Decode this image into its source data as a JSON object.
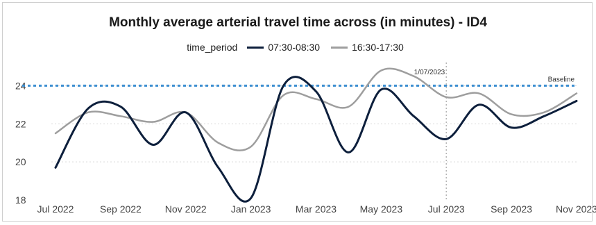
{
  "chart_data": {
    "type": "line",
    "title": "Monthly average arterial travel time across (in minutes) - ID4",
    "legend_title": "time_period",
    "legend_position": "top-center",
    "x": [
      "2022-07",
      "2022-08",
      "2022-09",
      "2022-10",
      "2022-11",
      "2022-12",
      "2023-01",
      "2023-02",
      "2023-03",
      "2023-04",
      "2023-05",
      "2023-06",
      "2023-07",
      "2023-08",
      "2023-09",
      "2023-10",
      "2023-11"
    ],
    "x_tick_labels": [
      "Jul 2022",
      "Sep 2022",
      "Nov 2022",
      "Jan 2023",
      "Mar 2023",
      "May 2023",
      "Jul 2023",
      "Sep 2023",
      "Nov 2023"
    ],
    "ylim": [
      18,
      25
    ],
    "y_ticks": [
      18,
      20,
      22,
      24
    ],
    "grid": "horizontal-dotted",
    "series": [
      {
        "name": "07:30-08:30",
        "color": "#0d1f3c",
        "values": [
          19.7,
          22.8,
          22.9,
          20.9,
          22.6,
          19.7,
          18.1,
          24.0,
          23.7,
          20.5,
          23.8,
          22.4,
          21.2,
          23.0,
          21.8,
          22.4,
          23.2
        ]
      },
      {
        "name": "16:30-17:30",
        "color": "#9e9e9e",
        "values": [
          21.5,
          22.6,
          22.4,
          22.1,
          22.6,
          21.0,
          20.8,
          23.5,
          23.3,
          22.9,
          24.8,
          24.5,
          23.4,
          23.6,
          22.5,
          22.6,
          23.6
        ]
      }
    ],
    "reference_lines": [
      {
        "type": "horizontal",
        "value": 24,
        "label": "Baseline",
        "color": "#3d8fd1",
        "style": "dotted"
      },
      {
        "type": "vertical",
        "value": "2023-07",
        "label": "1/07/2023",
        "color": "#b5b5b5",
        "style": "dotted"
      }
    ]
  }
}
